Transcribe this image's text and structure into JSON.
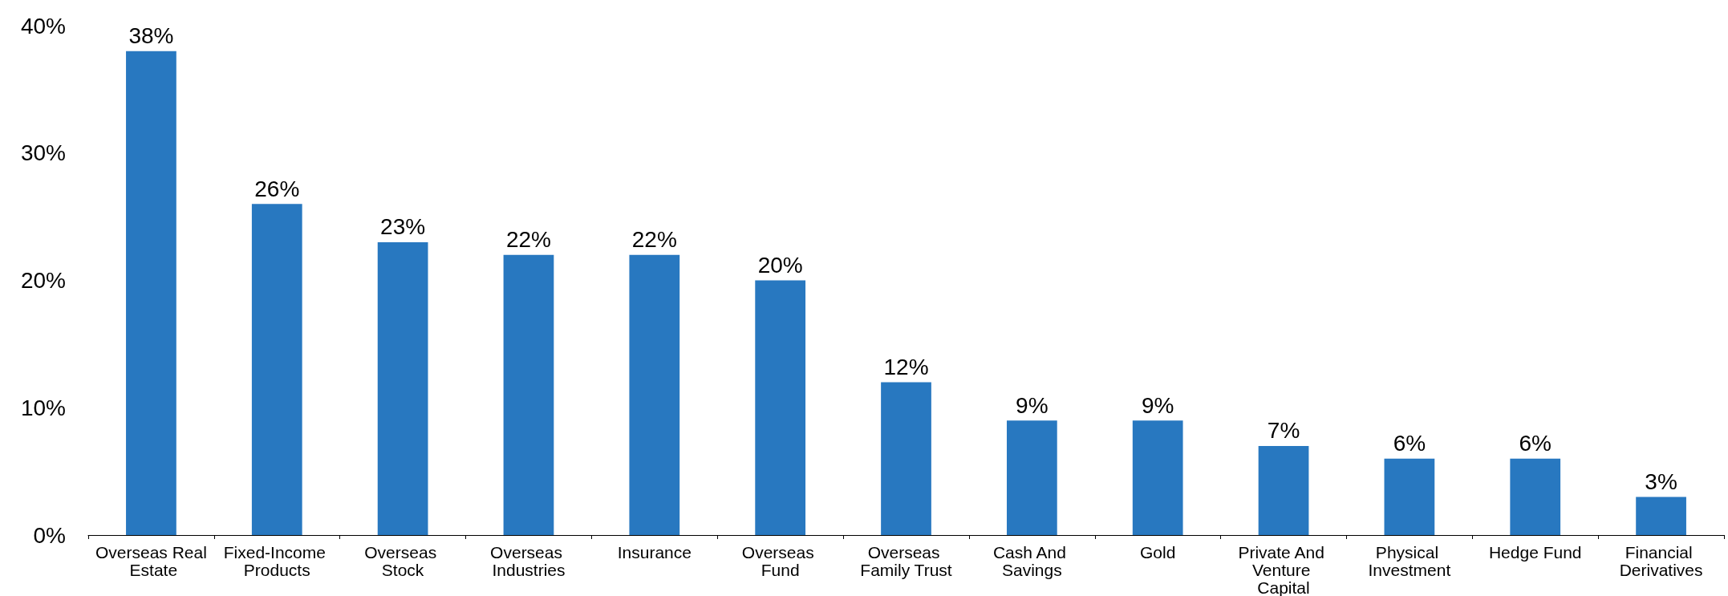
{
  "chart_data": {
    "type": "bar",
    "categories": [
      "Overseas Real Estate",
      "Fixed-Income Products",
      "Overseas Stock",
      "Overseas Industries",
      "Insurance",
      "Overseas Fund",
      "Overseas Family Trust",
      "Cash And Savings",
      "Gold",
      "Private And Venture Capital",
      "Physical Investment",
      "Hedge Fund",
      "Financial Derivatives"
    ],
    "values": [
      38,
      26,
      23,
      22,
      22,
      20,
      12,
      9,
      9,
      7,
      6,
      6,
      3
    ],
    "value_labels": [
      "38%",
      "26%",
      "23%",
      "22%",
      "22%",
      "20%",
      "12%",
      "9%",
      "9%",
      "7%",
      "6%",
      "6%",
      "3%"
    ],
    "color": "#2878c0",
    "ylim": [
      0,
      40
    ],
    "yticks": [
      {
        "value": 0,
        "label": "0%"
      },
      {
        "value": 10,
        "label": "10%"
      },
      {
        "value": 20,
        "label": "20%"
      },
      {
        "value": 30,
        "label": "30%"
      },
      {
        "value": 40,
        "label": "40%"
      }
    ],
    "grid": false
  }
}
